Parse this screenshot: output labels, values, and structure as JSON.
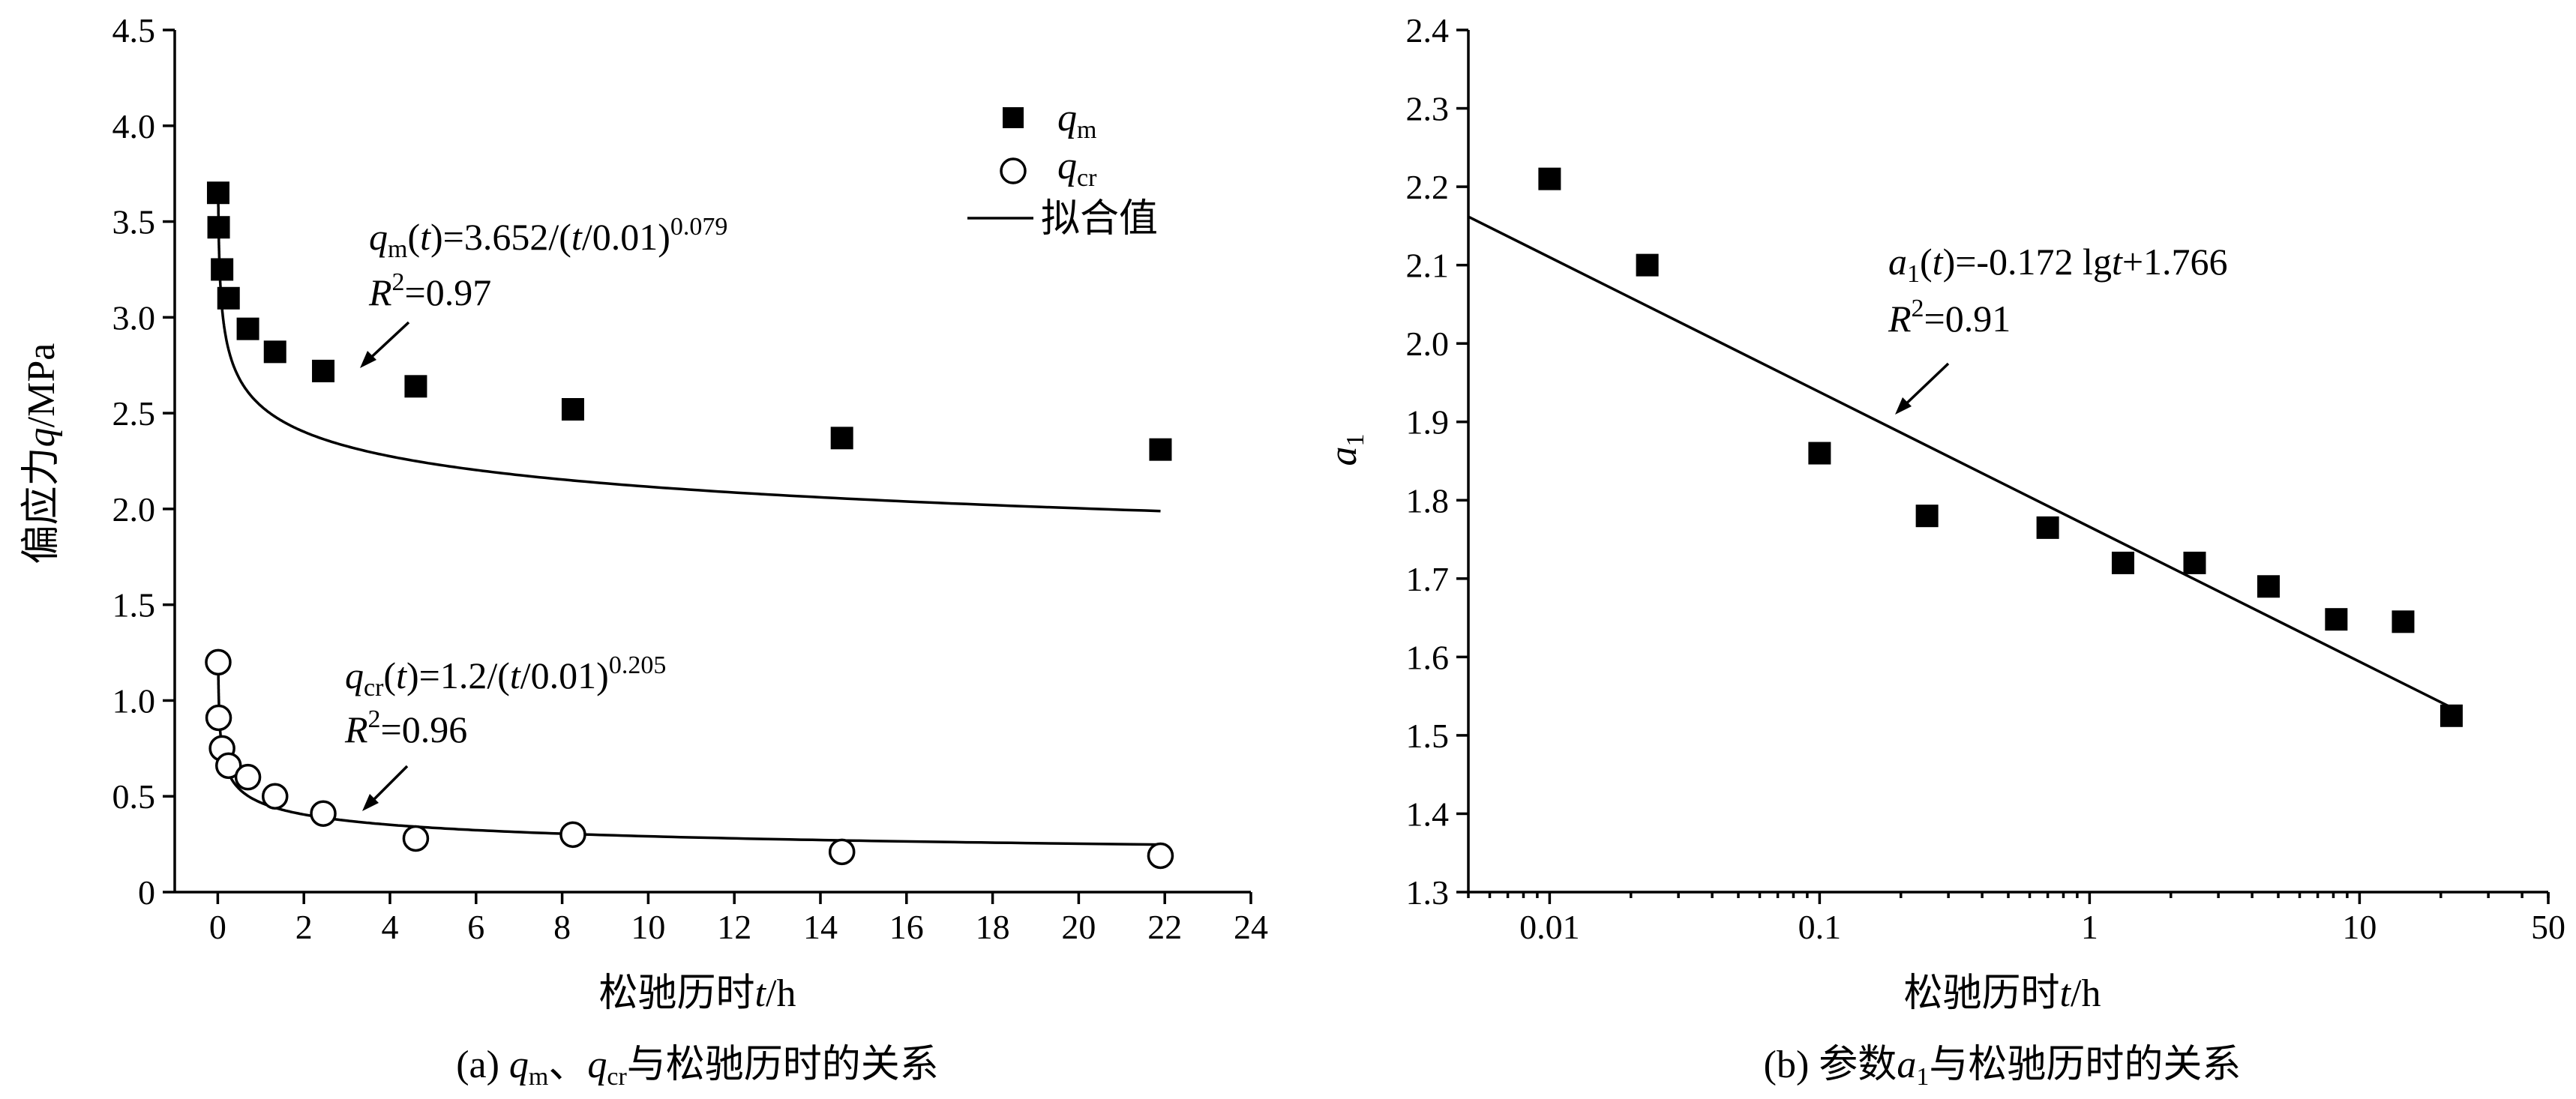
{
  "chart_data": [
    {
      "type": "scatter",
      "caption": "(a) q_m、q_cr与松驰历时的关系",
      "xlabel": "松驰历时t/h",
      "ylabel": "偏应力q/MPa",
      "xlim": [
        -1,
        24
      ],
      "ylim": [
        0,
        4.5
      ],
      "xticks": [
        0,
        2,
        4,
        6,
        8,
        10,
        12,
        14,
        16,
        18,
        20,
        22,
        24
      ],
      "yticks": [
        "0",
        "0.5",
        "1.0",
        "1.5",
        "2.0",
        "2.5",
        "3.0",
        "3.5",
        "4.0",
        "4.5"
      ],
      "legend": {
        "position": "top-right",
        "entries": [
          "q_m",
          "q_cr",
          "拟合值"
        ]
      },
      "series": [
        {
          "name": "q_m",
          "marker": "filled-square",
          "x": [
            0.01,
            0.02,
            0.1,
            0.25,
            0.7,
            1.33,
            2.45,
            4.6,
            8.25,
            14.5,
            21.9
          ],
          "y": [
            3.65,
            3.47,
            3.25,
            3.1,
            2.94,
            2.82,
            2.72,
            2.64,
            2.52,
            2.37,
            2.31
          ]
        },
        {
          "name": "q_cr",
          "marker": "open-circle",
          "x": [
            0.01,
            0.02,
            0.1,
            0.25,
            0.7,
            1.33,
            2.45,
            4.6,
            8.25,
            14.5,
            21.9
          ],
          "y": [
            1.2,
            0.91,
            0.75,
            0.66,
            0.6,
            0.5,
            0.41,
            0.28,
            0.3,
            0.21,
            0.19
          ]
        }
      ],
      "fits": [
        {
          "for": "q_m",
          "a": 3.652,
          "b": 0.079
        },
        {
          "for": "q_cr",
          "a": 1.2,
          "b": 0.205
        }
      ],
      "annotations": {
        "qm_eq": {
          "main": "q",
          "sub": "m",
          "rest": "(t)=3.652/(t/0.01)",
          "exp": "0.079"
        },
        "qm_r2": {
          "r": "R",
          "sup": "2",
          "val": "=0.97"
        },
        "qcr_eq": {
          "main": "q",
          "sub": "cr",
          "rest": "(t)=1.2/(t/0.01)",
          "exp": "0.205"
        },
        "qcr_r2": {
          "r": "R",
          "sup": "2",
          "val": "=0.96"
        }
      }
    },
    {
      "type": "scatter",
      "caption": "(b) 参数a1与松驰历时的关系",
      "xlabel": "松驰历时t/h",
      "ylabel": "a1",
      "xscale": "log",
      "xlim": [
        0.005,
        50
      ],
      "ylim": [
        1.3,
        2.4
      ],
      "xticks": [
        0.01,
        0.1,
        1,
        10,
        50
      ],
      "xticklabels": [
        "0.01",
        "0.1",
        "1",
        "10",
        "50"
      ],
      "yticks": [
        "1.3",
        "1.4",
        "1.5",
        "1.6",
        "1.7",
        "1.8",
        "1.9",
        "2.0",
        "2.1",
        "2.2",
        "2.3",
        "2.4"
      ],
      "series": [
        {
          "name": "a1",
          "marker": "filled-square",
          "x": [
            0.01,
            0.023,
            0.1,
            0.25,
            0.7,
            1.33,
            2.45,
            4.6,
            8.2,
            14.5,
            21.9
          ],
          "y": [
            2.21,
            2.1,
            1.86,
            1.78,
            1.765,
            1.72,
            1.72,
            1.69,
            1.648,
            1.645,
            1.525
          ]
        }
      ],
      "fit": {
        "slope": -0.172,
        "intercept": 1.766
      },
      "annotations": {
        "a1_eq": {
          "main": "a",
          "sub": "1",
          "rest": "(t)=-0.172 lgt+1.766"
        },
        "a1_r2": {
          "r": "R",
          "sup": "2",
          "val": "=0.91"
        }
      }
    }
  ],
  "captions": {
    "a": {
      "prefix": "(a) ",
      "q1": "q",
      "q1sub": "m",
      "sep": "、",
      "q2": "q",
      "q2sub": "cr",
      "rest": "与松驰历时的关系"
    },
    "b": {
      "prefix": "(b) 参数",
      "a": "a",
      "asub": "1",
      "rest": "与松驰历时的关系"
    }
  },
  "legend": {
    "qm": {
      "main": "q",
      "sub": "m"
    },
    "qcr": {
      "main": "q",
      "sub": "cr"
    },
    "fit": "拟合值"
  },
  "axes": {
    "a_xlabel": "松驰历时t/h",
    "a_ylabel": "偏应力q/MPa",
    "b_xlabel": "松驰历时t/h",
    "b_ylabel_main": "a",
    "b_ylabel_sub": "1"
  }
}
